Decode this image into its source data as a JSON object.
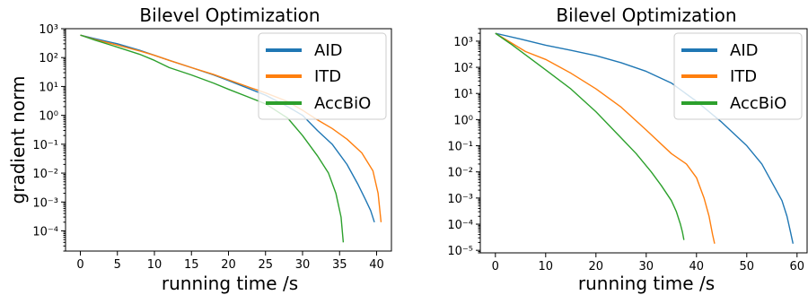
{
  "chart_data": [
    {
      "type": "line",
      "title": "Bilevel Optimization",
      "xlabel": "running time /s",
      "ylabel": "gradient norm",
      "yscale": "log",
      "xlim": [
        -2,
        42
      ],
      "ylim": [
        2e-05,
        1000
      ],
      "xticks": [
        0,
        5,
        10,
        15,
        20,
        25,
        30,
        35,
        40
      ],
      "yticks": [
        -4,
        -3,
        -2,
        -1,
        0,
        1,
        2,
        3
      ],
      "legend_position": "top-right",
      "series": [
        {
          "name": "AID",
          "color": "#1f77b4",
          "x": [
            0,
            2,
            5,
            8,
            10,
            12,
            15,
            18,
            20,
            23,
            25,
            28,
            30,
            32,
            34,
            36,
            37.5,
            38.5,
            39.2,
            39.7
          ],
          "y": [
            600,
            450,
            300,
            180,
            120,
            80,
            45,
            25,
            16,
            8,
            5,
            2,
            1,
            0.3,
            0.1,
            0.02,
            0.004,
            0.0012,
            0.0005,
            0.0002
          ]
        },
        {
          "name": "ITD",
          "color": "#ff7f0e",
          "x": [
            0,
            2,
            5,
            8,
            10,
            12,
            15,
            18,
            20,
            23,
            25,
            28,
            30,
            32,
            34,
            36,
            38,
            39.5,
            40.2,
            40.6
          ],
          "y": [
            600,
            420,
            270,
            170,
            120,
            80,
            45,
            26,
            17,
            9,
            6,
            3,
            1.5,
            0.7,
            0.35,
            0.15,
            0.05,
            0.012,
            0.002,
            0.0002
          ]
        },
        {
          "name": "AccBiO",
          "color": "#2ca02c",
          "x": [
            0,
            2,
            5,
            8,
            10,
            12,
            15,
            18,
            20,
            23,
            25,
            28,
            30,
            32,
            33.5,
            34.5,
            35.2,
            35.5
          ],
          "y": [
            600,
            400,
            230,
            130,
            80,
            45,
            25,
            13,
            8,
            4,
            2.5,
            0.8,
            0.2,
            0.04,
            0.01,
            0.002,
            0.0003,
            4e-05
          ]
        }
      ]
    },
    {
      "type": "line",
      "title": "Bilevel Optimization",
      "xlabel": "running time /s",
      "ylabel": "",
      "yscale": "log",
      "xlim": [
        -3,
        62
      ],
      "ylim": [
        8e-06,
        3000
      ],
      "xticks": [
        0,
        10,
        20,
        30,
        40,
        50,
        60
      ],
      "yticks": [
        -5,
        -4,
        -3,
        -2,
        -1,
        0,
        1,
        2,
        3
      ],
      "legend_position": "top-right",
      "series": [
        {
          "name": "AID",
          "color": "#1f77b4",
          "x": [
            0,
            5,
            10,
            15,
            20,
            25,
            30,
            35,
            40,
            45,
            50,
            53,
            55,
            57,
            58,
            58.7,
            59.2
          ],
          "y": [
            2000,
            1200,
            700,
            450,
            280,
            150,
            70,
            25,
            5,
            0.8,
            0.1,
            0.02,
            0.004,
            0.0008,
            0.0002,
            5e-05,
            1.8e-05
          ]
        },
        {
          "name": "ITD",
          "color": "#ff7f0e",
          "x": [
            0,
            3,
            6,
            10,
            15,
            20,
            25,
            30,
            35,
            38,
            40,
            41.5,
            42.5,
            43.2,
            43.6
          ],
          "y": [
            2000,
            900,
            400,
            200,
            60,
            15,
            3,
            0.4,
            0.05,
            0.02,
            0.006,
            0.001,
            0.0002,
            4e-05,
            1.8e-05
          ]
        },
        {
          "name": "AccBiO",
          "color": "#2ca02c",
          "x": [
            0,
            3,
            6,
            10,
            15,
            20,
            25,
            28,
            31,
            33,
            35,
            36,
            36.8,
            37.2,
            37.5
          ],
          "y": [
            2000,
            800,
            300,
            80,
            15,
            2,
            0.2,
            0.05,
            0.01,
            0.003,
            0.0008,
            0.0003,
            0.0001,
            5e-05,
            2.5e-05
          ]
        }
      ]
    }
  ]
}
